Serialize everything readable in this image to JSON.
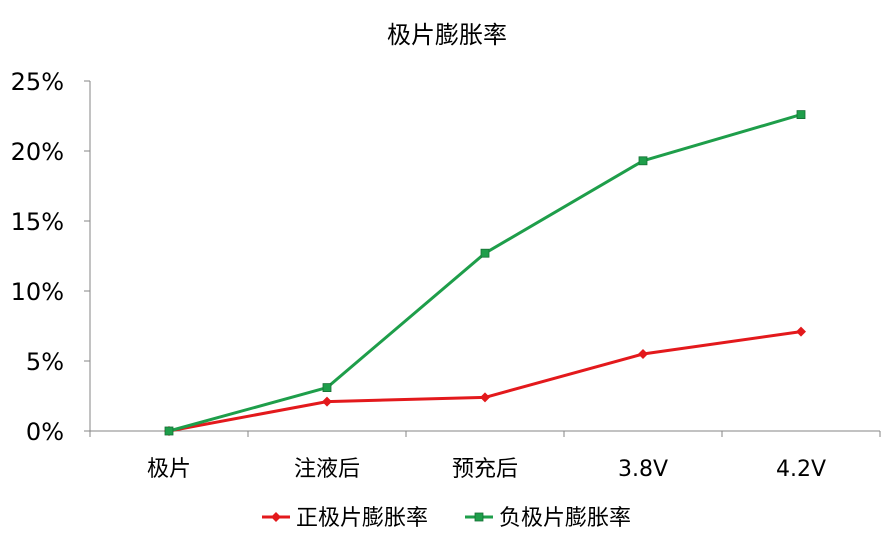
{
  "chart_data": {
    "type": "line",
    "title": "极片膨胀率",
    "xlabel": "",
    "ylabel": "",
    "categories": [
      "极片",
      "注液后",
      "预充后",
      "3.8V",
      "4.2V"
    ],
    "ylim": [
      0,
      25
    ],
    "yticks": [
      0,
      5,
      10,
      15,
      20,
      25
    ],
    "ytick_labels": [
      "0%",
      "5%",
      "10%",
      "15%",
      "20%",
      "25%"
    ],
    "grid": false,
    "legend_position": "bottom",
    "series": [
      {
        "name": "正极片膨胀率",
        "values": [
          0.0,
          2.1,
          2.4,
          5.5,
          7.1
        ],
        "color": "#e3191c",
        "marker": "diamond"
      },
      {
        "name": "负极片膨胀率",
        "values": [
          0.0,
          3.1,
          12.7,
          19.3,
          22.6
        ],
        "color": "#1e9e4a",
        "marker": "square"
      }
    ]
  }
}
